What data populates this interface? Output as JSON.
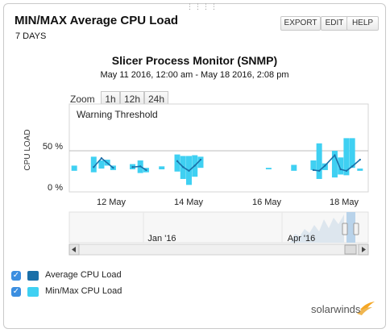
{
  "header": {
    "title": "MIN/MAX Average CPU Load",
    "period": "7 DAYS",
    "export_label": "EXPORT",
    "edit_label": "EDIT",
    "help_label": "HELP"
  },
  "zoom": {
    "label": "Zoom",
    "options": [
      "1h",
      "12h",
      "24h"
    ]
  },
  "navigator": {
    "labels": [
      "Jan '16",
      "Apr '16"
    ]
  },
  "legend": {
    "items": [
      {
        "label": "Average CPU Load",
        "color": "#1a6fa8"
      },
      {
        "label": "Min/Max CPU Load",
        "color": "#3fd0f2"
      }
    ]
  },
  "brand": {
    "name": "solarwinds",
    "accent": "#f5a623"
  },
  "chart_data": {
    "type": "area",
    "title": "Slicer Process Monitor (SNMP)",
    "subtitle": "May 11 2016, 12:00 am - May 18 2016, 2:08 pm",
    "xlabel": "",
    "ylabel": "CPU LOAD",
    "x_ticks": [
      "12 May",
      "14 May",
      "16 May",
      "18 May"
    ],
    "y_ticks": [
      "0 %",
      "50 %"
    ],
    "ylim": [
      0,
      100
    ],
    "annotations": [
      "Warning Threshold"
    ],
    "threshold": 50,
    "grid": false,
    "series": [
      {
        "name": "Min/Max CPU Load",
        "color": "#3fd0f2",
        "kind": "range",
        "points": [
          {
            "x": 11.05,
            "low": 23,
            "high": 30
          },
          {
            "x": 11.55,
            "low": 21,
            "high": 42
          },
          {
            "x": 11.75,
            "low": 26,
            "high": 37
          },
          {
            "x": 11.9,
            "low": 30,
            "high": 38
          },
          {
            "x": 12.05,
            "low": 24,
            "high": 30
          },
          {
            "x": 12.55,
            "low": 25,
            "high": 32
          },
          {
            "x": 12.75,
            "low": 20,
            "high": 37
          },
          {
            "x": 12.9,
            "low": 21,
            "high": 27
          },
          {
            "x": 13.3,
            "low": 25,
            "high": 29
          },
          {
            "x": 13.7,
            "low": 22,
            "high": 45
          },
          {
            "x": 13.85,
            "low": 12,
            "high": 43
          },
          {
            "x": 14.0,
            "low": 4,
            "high": 43
          },
          {
            "x": 14.15,
            "low": 15,
            "high": 44
          },
          {
            "x": 14.3,
            "low": 27,
            "high": 42
          },
          {
            "x": 16.05,
            "low": 25,
            "high": 27
          },
          {
            "x": 16.7,
            "low": 23,
            "high": 31
          },
          {
            "x": 17.2,
            "low": 24,
            "high": 37
          },
          {
            "x": 17.35,
            "low": 12,
            "high": 60
          },
          {
            "x": 17.5,
            "low": 24,
            "high": 33
          },
          {
            "x": 17.75,
            "low": 14,
            "high": 50
          },
          {
            "x": 17.9,
            "low": 18,
            "high": 41
          },
          {
            "x": 18.05,
            "low": 17,
            "high": 67
          },
          {
            "x": 18.2,
            "low": 27,
            "high": 67
          },
          {
            "x": 18.4,
            "low": 23,
            "high": 26
          }
        ]
      },
      {
        "name": "Average CPU Load",
        "color": "#1a6fa8",
        "kind": "line",
        "points": [
          {
            "x": 11.55,
            "y": 28
          },
          {
            "x": 11.75,
            "y": 40
          },
          {
            "x": 12.05,
            "y": 27
          },
          {
            "x": 12.55,
            "y": 28
          },
          {
            "x": 12.75,
            "y": 29
          },
          {
            "x": 12.9,
            "y": 24
          },
          {
            "x": 13.7,
            "y": 36
          },
          {
            "x": 13.85,
            "y": 28
          },
          {
            "x": 14.0,
            "y": 23
          },
          {
            "x": 14.15,
            "y": 30
          },
          {
            "x": 14.3,
            "y": 38
          },
          {
            "x": 17.2,
            "y": 24
          },
          {
            "x": 17.35,
            "y": 23
          },
          {
            "x": 17.5,
            "y": 30
          },
          {
            "x": 17.75,
            "y": 44
          },
          {
            "x": 17.9,
            "y": 25
          },
          {
            "x": 18.05,
            "y": 23
          },
          {
            "x": 18.2,
            "y": 29
          },
          {
            "x": 18.4,
            "y": 38
          }
        ]
      }
    ]
  }
}
